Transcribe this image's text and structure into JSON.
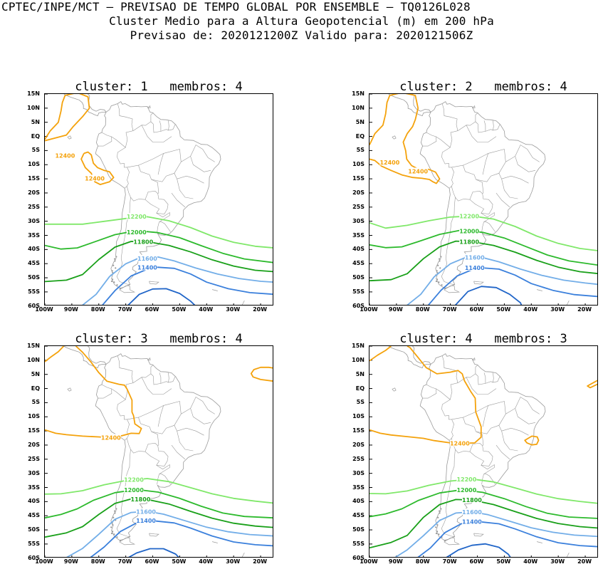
{
  "header": {
    "line1": "CPTEC/INPE/MCT – PREVISAO DE TEMPO GLOBAL POR ENSEMBLE – TQ0126L028",
    "line2": "Cluster Medio para a Altura Geopotencial (m) em 200 hPa",
    "line3": "Previsao de: 2020121200Z    Valido para: 2020121506Z"
  },
  "axes": {
    "lat_labels": [
      "15N",
      "10N",
      "5N",
      "EQ",
      "5S",
      "10S",
      "15S",
      "20S",
      "25S",
      "30S",
      "35S",
      "40S",
      "45S",
      "50S",
      "55S",
      "60S"
    ],
    "lon_labels": [
      "100W",
      "90W",
      "80W",
      "70W",
      "60W",
      "50W",
      "40W",
      "30W",
      "20W"
    ]
  },
  "colors": {
    "c12400": "#f4a20c",
    "c12200": "#80e86a",
    "c12000": "#2dba2d",
    "c11800": "#19a019",
    "c11600": "#73aee8",
    "c11400": "#3b80dc",
    "c11200": "#2065c8",
    "coast": "#9a9a9a"
  },
  "contour_labels": {
    "l12400": "12400",
    "l12200": "12200",
    "l12000": "12000",
    "l11800": "11800",
    "l11600": "11600",
    "l11400": "11400"
  },
  "panels": [
    {
      "title": "cluster: 1   membros: 4"
    },
    {
      "title": "cluster: 2   membros: 4"
    },
    {
      "title": "cluster: 3   membros: 4"
    },
    {
      "title": "cluster: 4   membros: 3"
    }
  ]
}
